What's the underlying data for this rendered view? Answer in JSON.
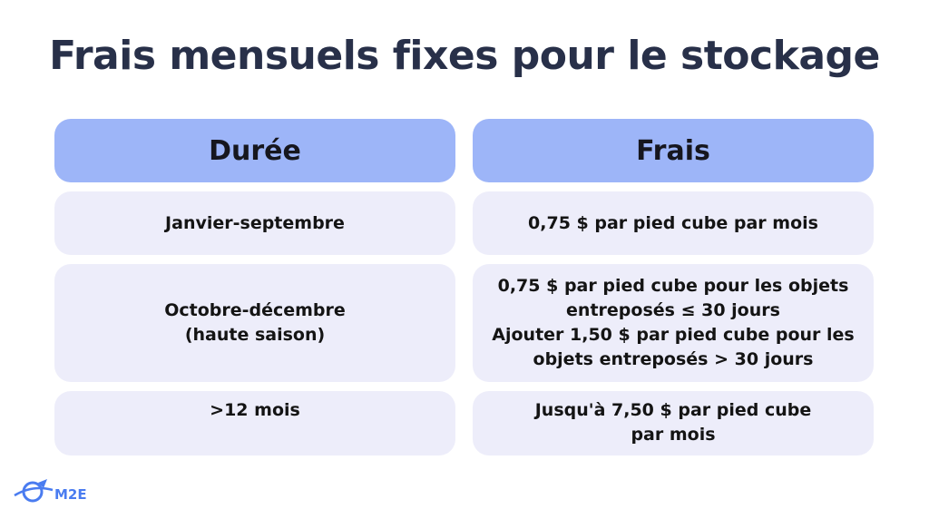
{
  "header": {
    "title": "Frais mensuels fixes pour le stockage"
  },
  "table": {
    "columns": [
      "Durée",
      "Frais"
    ],
    "rows": [
      [
        [
          "Janvier-septembre"
        ],
        [
          "0,75 $ par pied cube par mois"
        ]
      ],
      [
        [
          "Octobre-décembre",
          "(haute saison)"
        ],
        [
          "0,75 $ par pied cube pour les objets",
          "entreposés ≤ 30 jours",
          "Ajouter 1,50 $ par pied cube pour les",
          "objets entreposés > 30 jours"
        ]
      ],
      [
        [
          ">12 mois"
        ],
        [
          "Jusqu'à 7,50 $ par pied cube",
          "par mois"
        ]
      ]
    ]
  },
  "logo": {
    "text": "M2E"
  }
}
